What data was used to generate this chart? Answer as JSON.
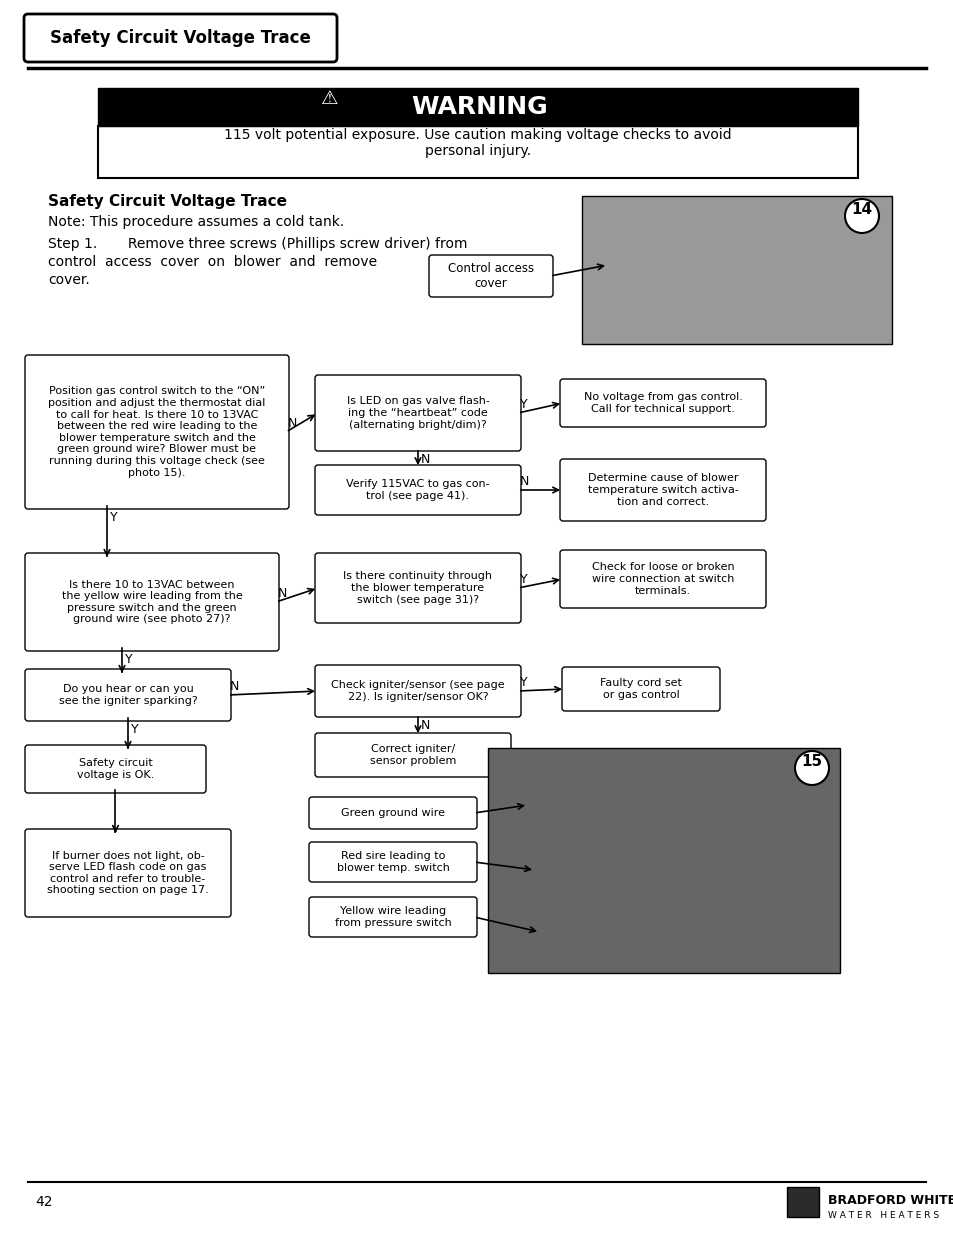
{
  "page_bg": "#ffffff",
  "title_box_text": "Safety Circuit Voltage Trace",
  "warning_text": "WARNING",
  "warning_body": "115 volt potential exposure. Use caution making voltage checks to avoid\npersonal injury.",
  "section_title": "Safety Circuit Voltage Trace",
  "note_text": "Note: This procedure assumes a cold tank.",
  "step1_line1": "Step 1.       Remove three screws (Phillips screw driver) from",
  "step1_line2": "control  access  cover  on  blower  and  remove",
  "step1_line3": "cover.",
  "control_access_label": "Control access\ncover",
  "box1_text": "Position gas control switch to the “ON”\nposition and adjust the thermostat dial\nto call for heat. Is there 10 to 13VAC\nbetween the red wire leading to the\nblower temperature switch and the\ngreen ground wire? Blower must be\nrunning during this voltage check (see\nphoto 15).",
  "box2_text": "Is LED on gas valve flash-\ning the “heartbeat” code\n(alternating bright/dim)?",
  "box3_text": "No voltage from gas control.\nCall for technical support.",
  "box4_text": "Verify 115VAC to gas con-\ntrol (see page 41).",
  "box5_text": "Determine cause of blower\ntemperature switch activa-\ntion and correct.",
  "box6_text": "Is there 10 to 13VAC between\nthe yellow wire leading from the\npressure switch and the green\nground wire (see photo 27)?",
  "box7_text": "Is there continuity through\nthe blower temperature\nswitch (see page 31)?",
  "box8_text": "Check for loose or broken\nwire connection at switch\nterminals.",
  "box9_text": "Do you hear or can you\nsee the igniter sparking?",
  "box10_text": "Check igniter/sensor (see page\n22). Is igniter/sensor OK?",
  "box11_text": "Faulty cord set\nor gas control",
  "box12_text": "Correct igniter/\nsensor problem",
  "box13_text": "Safety circuit\nvoltage is OK.",
  "box14_text": "Green ground wire",
  "box15_text": "Red sire leading to\nblower temp. switch",
  "box16_text": "Yellow wire leading\nfrom pressure switch",
  "box17_text": "If burner does not light, ob-\nserve LED flash code on gas\ncontrol and refer to trouble-\nshooting section on page 17.",
  "page_number": "42",
  "brand_name": "BRADFORD WHITE®",
  "brand_sub": "W A T E R   H E A T E R S",
  "photo14_label": "14",
  "photo15_label": "15"
}
